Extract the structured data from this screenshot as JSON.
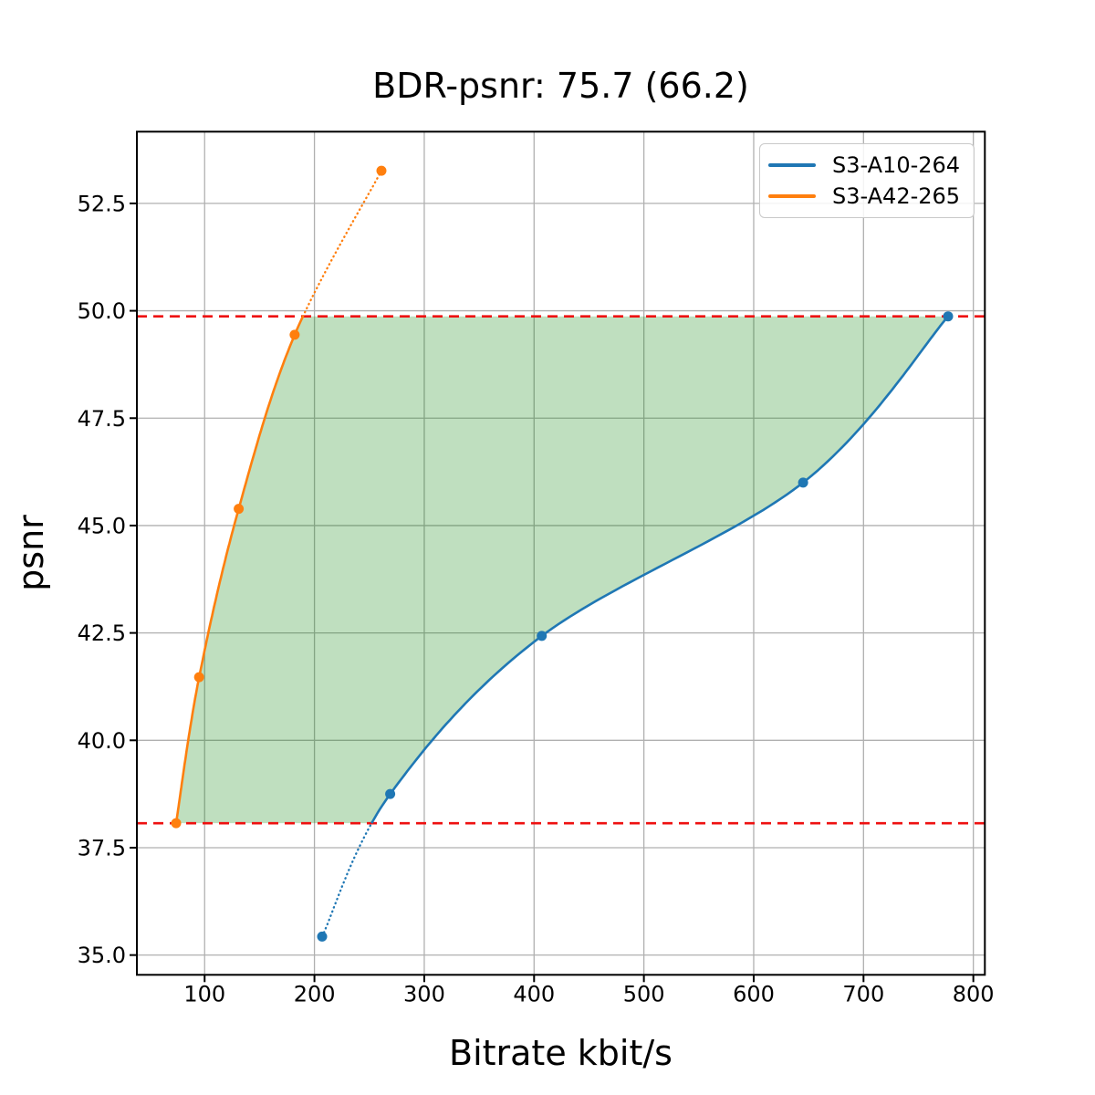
{
  "chart_data": {
    "type": "line",
    "title": "BDR-psnr: 75.7 (66.2)",
    "xlabel": "Bitrate kbit/s",
    "ylabel": "psnr",
    "xlim": [
      38.3,
      810.5
    ],
    "ylim": [
      34.54,
      54.17
    ],
    "x_ticks": [
      100,
      200,
      300,
      400,
      500,
      600,
      700,
      800
    ],
    "y_ticks": [
      35.0,
      37.5,
      40.0,
      42.5,
      45.0,
      47.5,
      50.0,
      52.5
    ],
    "grid": true,
    "grid_color": "#b0b0b0",
    "legend_position": "upper right",
    "series": [
      {
        "name": "S3-A10-264",
        "color": "#1f77b4",
        "points": [
          [
            207,
            35.43
          ],
          [
            269,
            38.75
          ],
          [
            407,
            42.43
          ],
          [
            645,
            46.0
          ],
          [
            777,
            49.87
          ]
        ]
      },
      {
        "name": "S3-A42-265",
        "color": "#ff7f0e",
        "points": [
          [
            74,
            38.07
          ],
          [
            95,
            41.47
          ],
          [
            131,
            45.39
          ],
          [
            182,
            49.44
          ],
          [
            261,
            53.26
          ]
        ]
      }
    ],
    "overlap_bounds": {
      "psnr_low": 38.07,
      "psnr_high": 49.87,
      "color": "#ee1111",
      "style": "dashed"
    },
    "shaded_region": {
      "color": "#008000",
      "alpha": 0.25
    },
    "outside_overlap_linestyle": "dotted"
  }
}
